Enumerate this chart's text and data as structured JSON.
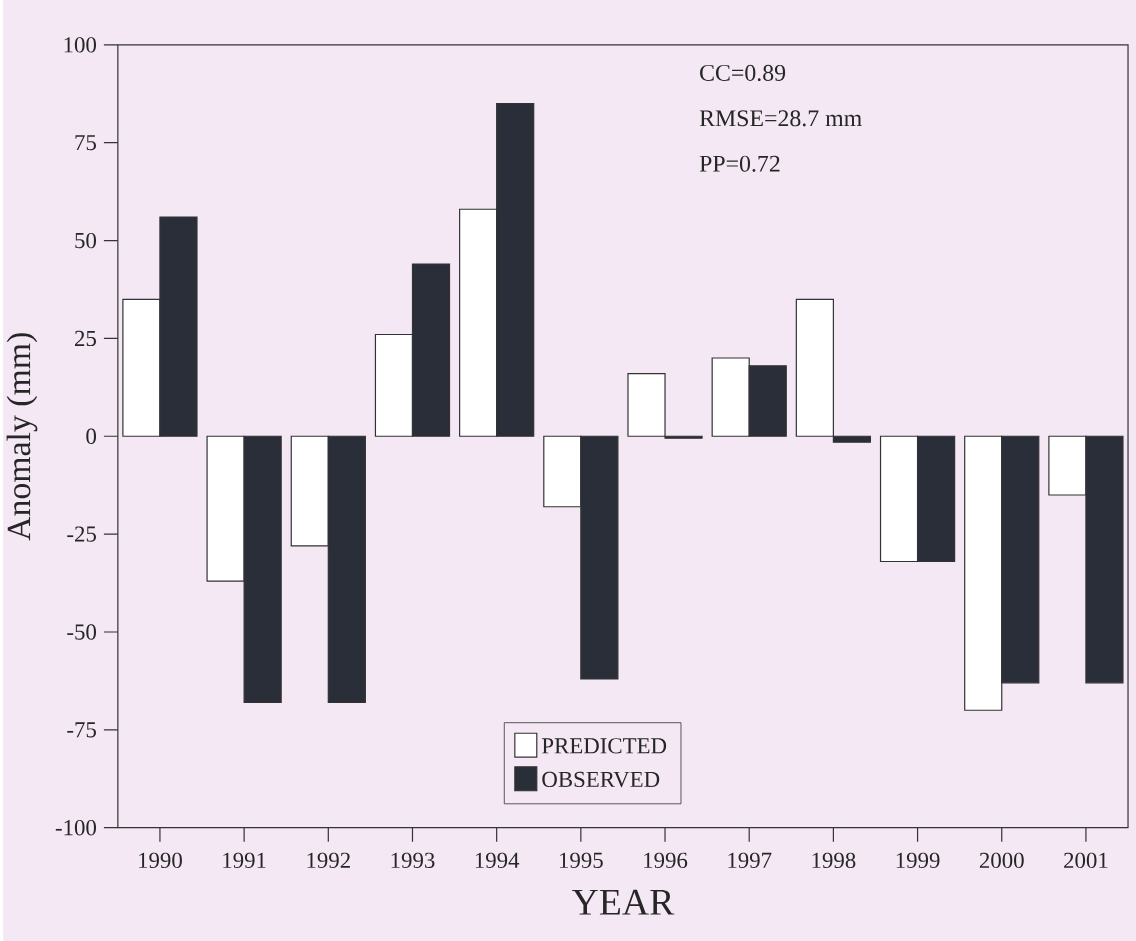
{
  "chart_data": {
    "type": "bar",
    "xlabel": "YEAR",
    "ylabel": "Anomaly (mm)",
    "categories": [
      "1990",
      "1991",
      "1992",
      "1993",
      "1994",
      "1995",
      "1996",
      "1997",
      "1998",
      "1999",
      "2000",
      "2001"
    ],
    "series": [
      {
        "name": "PREDICTED",
        "color": "#ffffff",
        "values": [
          35,
          -37,
          -28,
          26,
          58,
          -18,
          16,
          20,
          35,
          -32,
          -70,
          -15
        ]
      },
      {
        "name": "OBSERVED",
        "color": "#2a2e38",
        "values": [
          56,
          -68,
          -68,
          44,
          85,
          -62,
          -0.5,
          18,
          -1.5,
          -32,
          -63,
          -63
        ]
      }
    ],
    "ylim": [
      -100,
      100
    ],
    "yticks": [
      -100,
      -75,
      -50,
      -25,
      0,
      25,
      50,
      75,
      100
    ],
    "annotations": [
      "CC=0.89",
      "RMSE=28.7 mm",
      "PP=0.72"
    ],
    "legend": "bottom",
    "grid": false
  }
}
